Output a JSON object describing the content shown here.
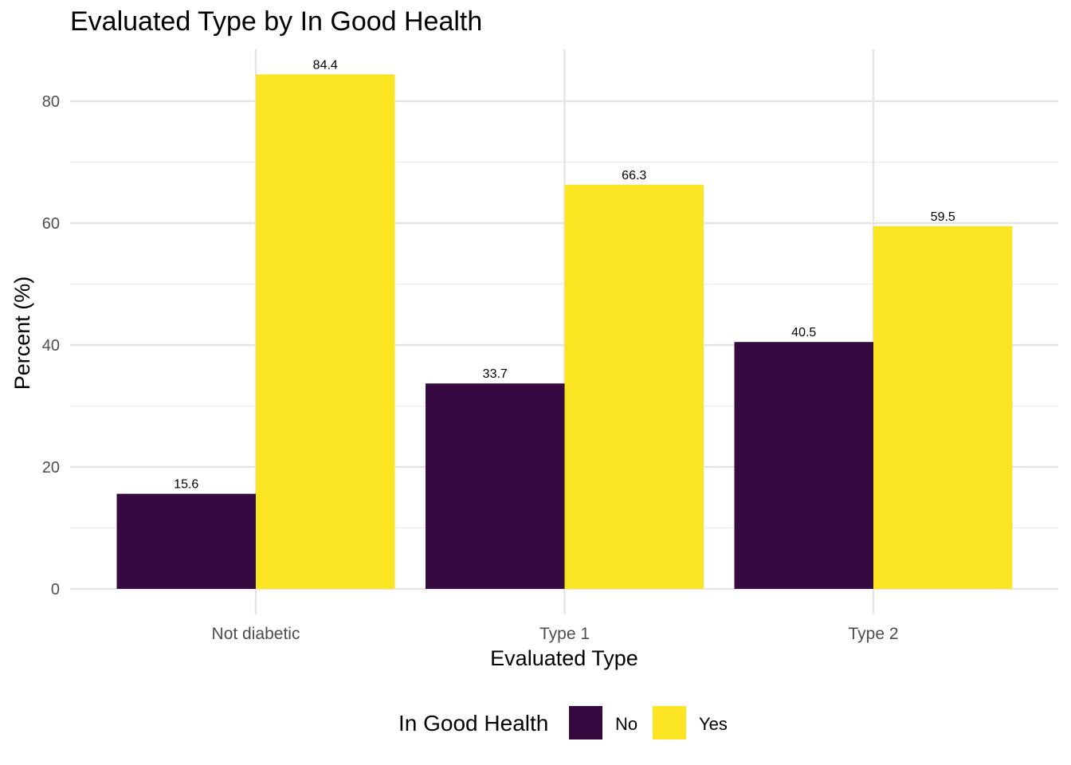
{
  "chart_data": {
    "type": "bar",
    "title": "Evaluated Type by In Good Health",
    "xlabel": "Evaluated Type",
    "ylabel": "Percent (%)",
    "categories": [
      "Not diabetic",
      "Type 1",
      "Type 2"
    ],
    "series": [
      {
        "name": "No",
        "values": [
          15.6,
          33.7,
          40.5
        ],
        "color": "#360a40"
      },
      {
        "name": "Yes",
        "values": [
          84.4,
          66.3,
          59.5
        ],
        "color": "#fbe422"
      }
    ],
    "ylim": [
      0,
      88
    ],
    "yticks": [
      0,
      20,
      40,
      60,
      80
    ],
    "grid": true,
    "legend": {
      "title": "In Good Health",
      "position": "bottom"
    }
  }
}
